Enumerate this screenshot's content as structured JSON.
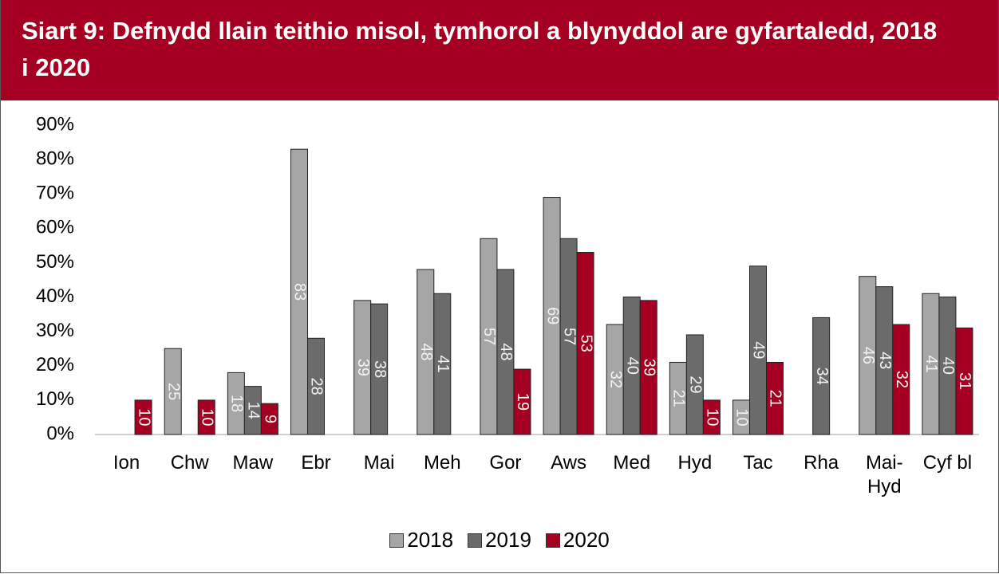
{
  "chart_data": {
    "type": "bar",
    "title": "Siart 9: Defnydd llain teithio misol, tymhorol a blynyddol are gyfartaledd, 2018 i 2020",
    "categories": [
      "Ion",
      "Chw",
      "Maw",
      "Ebr",
      "Mai",
      "Meh",
      "Gor",
      "Aws",
      "Med",
      "Hyd",
      "Tac",
      "Rha",
      "Mai-Hyd",
      "Cyf bl"
    ],
    "series": [
      {
        "name": "2018",
        "color": "#a6a6a6",
        "values": [
          null,
          25,
          18,
          83,
          39,
          48,
          57,
          69,
          32,
          21,
          10,
          null,
          46,
          41
        ]
      },
      {
        "name": "2019",
        "color": "#6b6b6b",
        "values": [
          null,
          null,
          14,
          28,
          38,
          41,
          48,
          57,
          40,
          29,
          49,
          34,
          43,
          40
        ]
      },
      {
        "name": "2020",
        "color": "#a50021",
        "values": [
          10,
          10,
          9,
          null,
          null,
          null,
          19,
          53,
          39,
          10,
          21,
          null,
          32,
          31
        ]
      }
    ],
    "ylim": [
      0,
      90
    ],
    "yticks": [
      {
        "value": 0,
        "label": "0%"
      },
      {
        "value": 10,
        "label": "10%"
      },
      {
        "value": 20,
        "label": "20%"
      },
      {
        "value": 30,
        "label": "30%"
      },
      {
        "value": 40,
        "label": "40%"
      },
      {
        "value": 50,
        "label": "50%"
      },
      {
        "value": 60,
        "label": "60%"
      },
      {
        "value": 70,
        "label": "70%"
      },
      {
        "value": 80,
        "label": "80%"
      },
      {
        "value": 90,
        "label": "90%"
      }
    ],
    "grid": false,
    "legend": "bottom"
  }
}
